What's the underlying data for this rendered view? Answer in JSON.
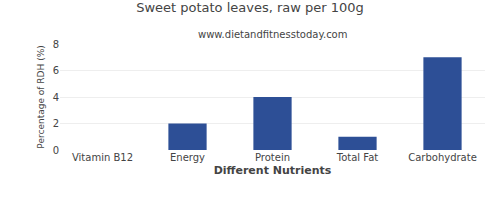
{
  "chart_data": {
    "type": "bar",
    "title": "Sweet potato leaves, raw per 100g",
    "subtitle": "www.dietandfitnesstoday.com",
    "xlabel": "Different Nutrients",
    "ylabel": "Percentage of RDH (%)",
    "categories": [
      "Vitamin B12",
      "Energy",
      "Protein",
      "Total Fat",
      "Carbohydrate"
    ],
    "values": [
      0,
      2,
      4,
      1,
      7
    ],
    "color": "#2d4f96",
    "ylim": [
      0,
      8
    ],
    "yticks": [
      0,
      2,
      4,
      6,
      8
    ],
    "grid": true
  }
}
